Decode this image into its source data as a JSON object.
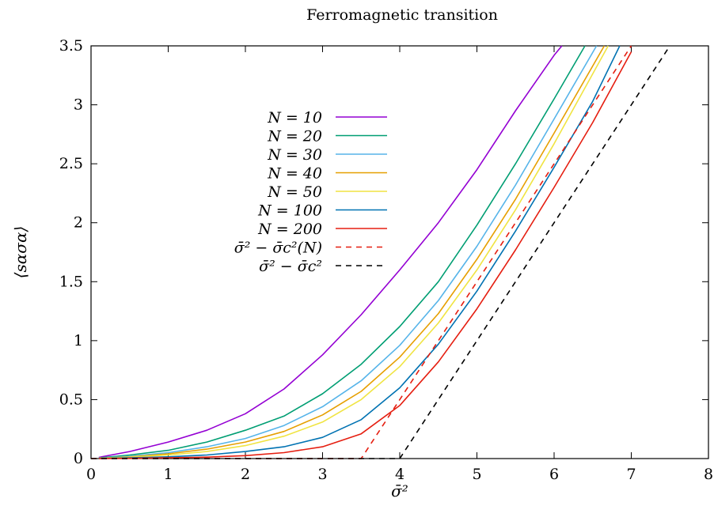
{
  "chart_data": {
    "type": "line",
    "title": "Ferromagnetic transition",
    "xlabel": "σ̄²",
    "ylabel": "⟨sασα⟩",
    "xlim": [
      0,
      8
    ],
    "ylim": [
      0,
      3.5
    ],
    "x_ticks": [
      "0",
      "1",
      "2",
      "3",
      "4",
      "5",
      "6",
      "7",
      "8"
    ],
    "y_ticks": [
      "0",
      "0.5",
      "1",
      "1.5",
      "2",
      "2.5",
      "3",
      "3.5"
    ],
    "grid": false,
    "legend_position": "left-center",
    "series": [
      {
        "name": "N = 10",
        "color": "#9400d3",
        "dash": "solid",
        "x": [
          0.1,
          0.5,
          1.0,
          1.5,
          2.0,
          2.5,
          3.0,
          3.5,
          4.0,
          4.5,
          5.0,
          5.5,
          6.0,
          6.1
        ],
        "y": [
          0.01,
          0.06,
          0.14,
          0.24,
          0.38,
          0.59,
          0.88,
          1.22,
          1.6,
          2.0,
          2.45,
          2.95,
          3.42,
          3.5
        ]
      },
      {
        "name": "N = 20",
        "color": "#009e73",
        "dash": "solid",
        "x": [
          0.1,
          0.5,
          1.0,
          1.5,
          2.0,
          2.5,
          3.0,
          3.5,
          4.0,
          4.5,
          5.0,
          5.5,
          6.0,
          6.4
        ],
        "y": [
          0.005,
          0.03,
          0.07,
          0.14,
          0.24,
          0.36,
          0.55,
          0.8,
          1.12,
          1.5,
          1.98,
          2.5,
          3.05,
          3.5
        ]
      },
      {
        "name": "N = 30",
        "color": "#56b4e9",
        "dash": "solid",
        "x": [
          0.1,
          0.5,
          1.0,
          1.5,
          2.0,
          2.5,
          3.0,
          3.5,
          4.0,
          4.5,
          5.0,
          5.5,
          6.0,
          6.55
        ],
        "y": [
          0.003,
          0.02,
          0.05,
          0.1,
          0.17,
          0.28,
          0.44,
          0.66,
          0.96,
          1.34,
          1.8,
          2.32,
          2.88,
          3.5
        ]
      },
      {
        "name": "N = 40",
        "color": "#e69f00",
        "dash": "solid",
        "x": [
          0.1,
          0.5,
          1.0,
          1.5,
          2.0,
          2.5,
          3.0,
          3.5,
          4.0,
          4.5,
          5.0,
          5.5,
          6.0,
          6.65
        ],
        "y": [
          0.002,
          0.015,
          0.04,
          0.08,
          0.14,
          0.23,
          0.37,
          0.57,
          0.86,
          1.23,
          1.69,
          2.2,
          2.76,
          3.5
        ]
      },
      {
        "name": "N = 50",
        "color": "#f0e442",
        "dash": "solid",
        "x": [
          0.1,
          0.5,
          1.0,
          1.5,
          2.0,
          2.5,
          3.0,
          3.5,
          4.0,
          4.5,
          5.0,
          5.5,
          6.0,
          6.7
        ],
        "y": [
          0.002,
          0.012,
          0.03,
          0.06,
          0.11,
          0.19,
          0.31,
          0.5,
          0.78,
          1.15,
          1.6,
          2.11,
          2.67,
          3.5
        ]
      },
      {
        "name": "N = 100",
        "color": "#0072b2",
        "dash": "solid",
        "x": [
          0.1,
          0.5,
          1.0,
          1.5,
          2.0,
          2.5,
          3.0,
          3.5,
          4.0,
          4.5,
          5.0,
          5.5,
          6.0,
          6.5,
          6.85
        ],
        "y": [
          0.001,
          0.006,
          0.015,
          0.03,
          0.06,
          0.1,
          0.18,
          0.33,
          0.6,
          0.97,
          1.42,
          1.93,
          2.47,
          3.03,
          3.5
        ]
      },
      {
        "name": "N = 200",
        "color": "#e51e10",
        "dash": "solid",
        "x": [
          0.1,
          0.5,
          1.0,
          1.5,
          2.0,
          2.5,
          3.0,
          3.5,
          4.0,
          4.5,
          5.0,
          5.5,
          6.0,
          6.5,
          7.0
        ],
        "y": [
          0.0,
          0.002,
          0.006,
          0.012,
          0.025,
          0.05,
          0.1,
          0.21,
          0.45,
          0.82,
          1.27,
          1.77,
          2.3,
          2.85,
          3.45
        ]
      },
      {
        "name": "σ̄² − σ̄c²(N)",
        "color": "#e51e10",
        "dash": "dashed",
        "x": [
          0.0,
          3.5,
          7.0
        ],
        "y": [
          0.0,
          0.0,
          3.5
        ]
      },
      {
        "name": "σ̄² − σ̄c²",
        "color": "#000000",
        "dash": "dashed",
        "x": [
          0.0,
          4.0,
          7.5
        ],
        "y": [
          0.0,
          0.0,
          3.5
        ]
      }
    ]
  }
}
